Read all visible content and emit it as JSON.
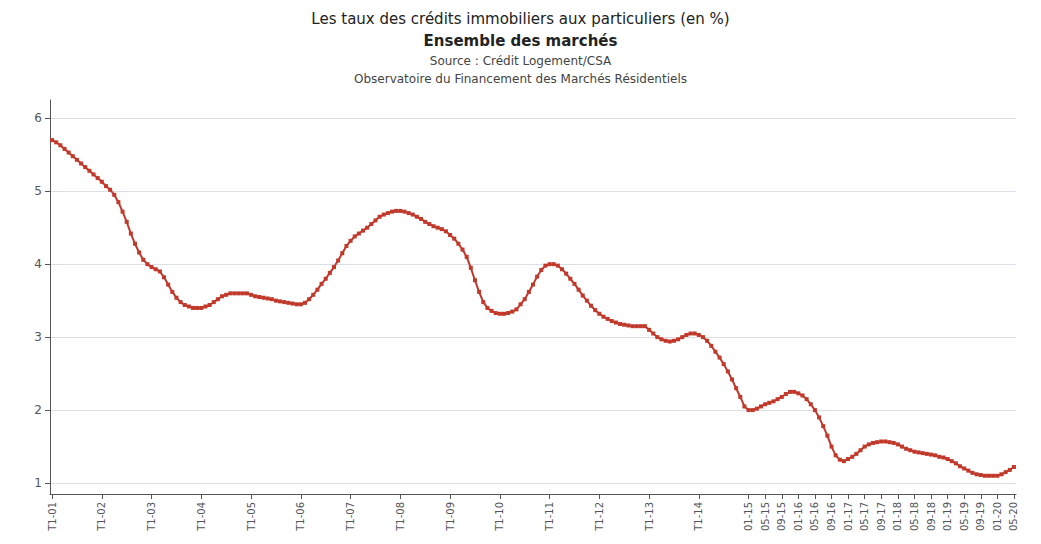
{
  "chart_data": {
    "type": "line",
    "title": [
      "Les taux des crédits immobiliers aux particuliers (en %)",
      "Ensemble des marchés"
    ],
    "subtitle": [
      "Source : Crédit Logement/CSA",
      "Observatoire du Financement des Marchés Résidentiels"
    ],
    "categories": [
      "T1-01",
      null,
      null,
      null,
      null,
      null,
      null,
      null,
      null,
      null,
      null,
      null,
      "T1-02",
      null,
      null,
      null,
      null,
      null,
      null,
      null,
      null,
      null,
      null,
      null,
      "T1-03",
      null,
      null,
      null,
      null,
      null,
      null,
      null,
      null,
      null,
      null,
      null,
      "T1-04",
      null,
      null,
      null,
      null,
      null,
      null,
      null,
      null,
      null,
      null,
      null,
      "T1-05",
      null,
      null,
      null,
      null,
      null,
      null,
      null,
      null,
      null,
      null,
      null,
      "T1-06",
      null,
      null,
      null,
      null,
      null,
      null,
      null,
      null,
      null,
      null,
      null,
      "T1-07",
      null,
      null,
      null,
      null,
      null,
      null,
      null,
      null,
      null,
      null,
      null,
      "T1-08",
      null,
      null,
      null,
      null,
      null,
      null,
      null,
      null,
      null,
      null,
      null,
      "T1-09",
      null,
      null,
      null,
      null,
      null,
      null,
      null,
      null,
      null,
      null,
      null,
      "T1-10",
      null,
      null,
      null,
      null,
      null,
      null,
      null,
      null,
      null,
      null,
      null,
      "T1-11",
      null,
      null,
      null,
      null,
      null,
      null,
      null,
      null,
      null,
      null,
      null,
      "T1-12",
      null,
      null,
      null,
      null,
      null,
      null,
      null,
      null,
      null,
      null,
      null,
      "T1-13",
      null,
      null,
      null,
      null,
      null,
      null,
      null,
      null,
      null,
      null,
      null,
      "T1-14",
      null,
      null,
      null,
      null,
      null,
      null,
      null,
      null,
      null,
      null,
      null,
      "01-15",
      null,
      null,
      null,
      "05-15",
      null,
      null,
      null,
      "09-15",
      null,
      null,
      null,
      "01-16",
      null,
      null,
      null,
      "05-16",
      null,
      null,
      null,
      "09-16",
      null,
      null,
      null,
      "01-17",
      null,
      null,
      null,
      "05-17",
      null,
      null,
      null,
      "09-17",
      null,
      null,
      null,
      "01-18",
      null,
      null,
      null,
      "05-18",
      null,
      null,
      null,
      "09-18",
      null,
      null,
      null,
      "01-19",
      null,
      null,
      null,
      "05-19",
      null,
      null,
      null,
      "09-19",
      null,
      null,
      null,
      "01-20",
      null,
      null,
      null,
      "05-20"
    ],
    "values": [
      5.7,
      5.67,
      5.63,
      5.58,
      5.53,
      5.48,
      5.43,
      5.38,
      5.33,
      5.28,
      5.23,
      5.18,
      5.13,
      5.07,
      5.02,
      4.95,
      4.85,
      4.72,
      4.58,
      4.42,
      4.28,
      4.16,
      4.06,
      4.0,
      3.96,
      3.93,
      3.9,
      3.82,
      3.72,
      3.62,
      3.54,
      3.48,
      3.44,
      3.42,
      3.4,
      3.4,
      3.4,
      3.42,
      3.44,
      3.48,
      3.52,
      3.56,
      3.58,
      3.6,
      3.6,
      3.6,
      3.6,
      3.6,
      3.58,
      3.56,
      3.55,
      3.54,
      3.53,
      3.52,
      3.5,
      3.49,
      3.48,
      3.47,
      3.46,
      3.45,
      3.45,
      3.47,
      3.52,
      3.58,
      3.65,
      3.73,
      3.8,
      3.88,
      3.96,
      4.05,
      4.15,
      4.25,
      4.32,
      4.38,
      4.42,
      4.46,
      4.5,
      4.55,
      4.6,
      4.65,
      4.68,
      4.7,
      4.72,
      4.73,
      4.73,
      4.72,
      4.7,
      4.68,
      4.65,
      4.62,
      4.58,
      4.55,
      4.52,
      4.5,
      4.48,
      4.45,
      4.4,
      4.35,
      4.28,
      4.2,
      4.1,
      3.95,
      3.78,
      3.62,
      3.48,
      3.4,
      3.36,
      3.33,
      3.32,
      3.32,
      3.33,
      3.35,
      3.38,
      3.45,
      3.52,
      3.62,
      3.72,
      3.83,
      3.92,
      3.98,
      4.0,
      4.0,
      3.98,
      3.93,
      3.87,
      3.8,
      3.73,
      3.65,
      3.57,
      3.5,
      3.43,
      3.37,
      3.32,
      3.28,
      3.25,
      3.22,
      3.2,
      3.18,
      3.17,
      3.16,
      3.15,
      3.15,
      3.15,
      3.15,
      3.1,
      3.05,
      3.0,
      2.97,
      2.95,
      2.94,
      2.95,
      2.97,
      3.0,
      3.03,
      3.05,
      3.05,
      3.03,
      3.0,
      2.95,
      2.88,
      2.8,
      2.72,
      2.63,
      2.53,
      2.42,
      2.3,
      2.18,
      2.05,
      2.0,
      2.0,
      2.02,
      2.05,
      2.08,
      2.1,
      2.12,
      2.15,
      2.18,
      2.22,
      2.25,
      2.25,
      2.23,
      2.2,
      2.15,
      2.08,
      2.0,
      1.9,
      1.78,
      1.65,
      1.5,
      1.38,
      1.32,
      1.3,
      1.33,
      1.36,
      1.4,
      1.45,
      1.5,
      1.53,
      1.55,
      1.56,
      1.57,
      1.57,
      1.56,
      1.55,
      1.53,
      1.5,
      1.47,
      1.45,
      1.43,
      1.42,
      1.41,
      1.4,
      1.39,
      1.38,
      1.36,
      1.35,
      1.33,
      1.3,
      1.27,
      1.23,
      1.2,
      1.17,
      1.14,
      1.12,
      1.11,
      1.1,
      1.1,
      1.1,
      1.1,
      1.12,
      1.15,
      1.18,
      1.22
    ],
    "color": "#c0392b",
    "marker": "square",
    "ylim": [
      0.85,
      6.25
    ],
    "yticks": [
      1,
      2,
      3,
      4,
      5,
      6
    ],
    "grid": true
  }
}
